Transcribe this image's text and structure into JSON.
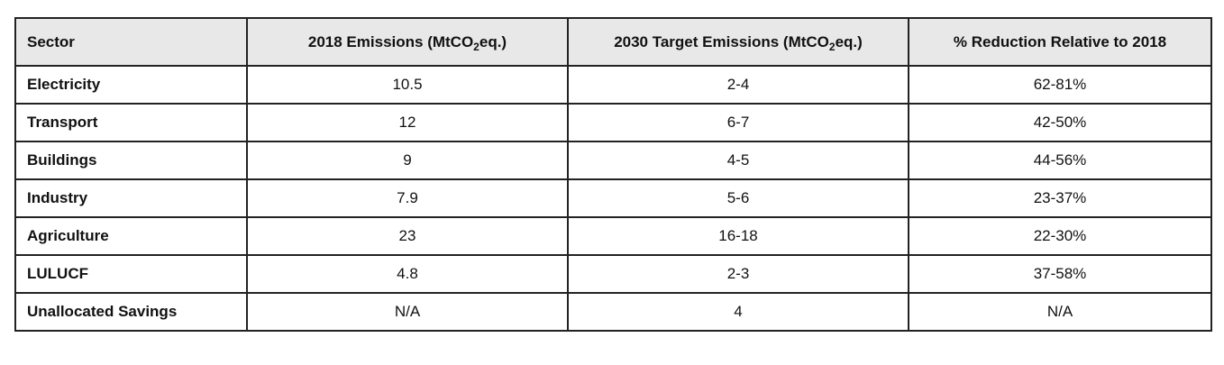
{
  "table": {
    "headers": {
      "sector": "Sector",
      "emissions_2018": {
        "prefix": "2018 Emissions (MtCO",
        "sub": "2",
        "suffix": "eq.)"
      },
      "target_2030": {
        "prefix": "2030 Target Emissions (MtCO",
        "sub": "2",
        "suffix": "eq.)"
      },
      "reduction": "% Reduction Relative to 2018"
    },
    "rows": [
      {
        "sector": "Electricity",
        "emissions_2018": "10.5",
        "target_2030": "2-4",
        "reduction": "62-81%"
      },
      {
        "sector": "Transport",
        "emissions_2018": "12",
        "target_2030": "6-7",
        "reduction": "42-50%"
      },
      {
        "sector": "Buildings",
        "emissions_2018": "9",
        "target_2030": "4-5",
        "reduction": "44-56%"
      },
      {
        "sector": "Industry",
        "emissions_2018": "7.9",
        "target_2030": "5-6",
        "reduction": "23-37%"
      },
      {
        "sector": "Agriculture",
        "emissions_2018": "23",
        "target_2030": "16-18",
        "reduction": "22-30%"
      },
      {
        "sector": "LULUCF",
        "emissions_2018": "4.8",
        "target_2030": "2-3",
        "reduction": "37-58%"
      },
      {
        "sector": "Unallocated Savings",
        "emissions_2018": "N/A",
        "target_2030": "4",
        "reduction": "N/A"
      }
    ]
  }
}
